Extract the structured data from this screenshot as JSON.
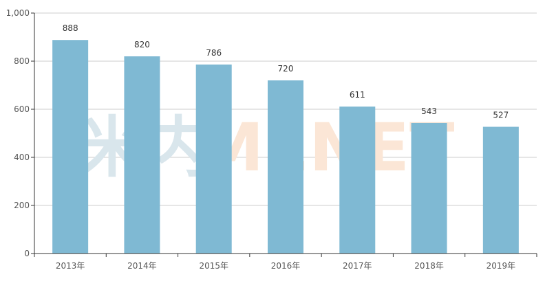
{
  "watermark": {
    "cn_text": "米内",
    "en_text": "MENET",
    "cn_color": "#d9e6ec",
    "en_color": "#fbe6d6"
  },
  "chart_data": {
    "type": "bar",
    "categories": [
      "2013年",
      "2014年",
      "2015年",
      "2016年",
      "2017年",
      "2018年",
      "2019年"
    ],
    "values": [
      888,
      820,
      786,
      720,
      611,
      543,
      527
    ],
    "data_labels": [
      "888",
      "820",
      "786",
      "720",
      "611",
      "543",
      "527"
    ],
    "yticks": [
      0,
      200,
      400,
      600,
      800,
      1000
    ],
    "ytick_labels": [
      "0",
      "200",
      "400",
      "600",
      "800",
      "1,000"
    ],
    "ylim": [
      0,
      1000
    ],
    "grid": true,
    "bar_color": "#7fb9d3",
    "title": "",
    "xlabel": "",
    "ylabel": ""
  }
}
